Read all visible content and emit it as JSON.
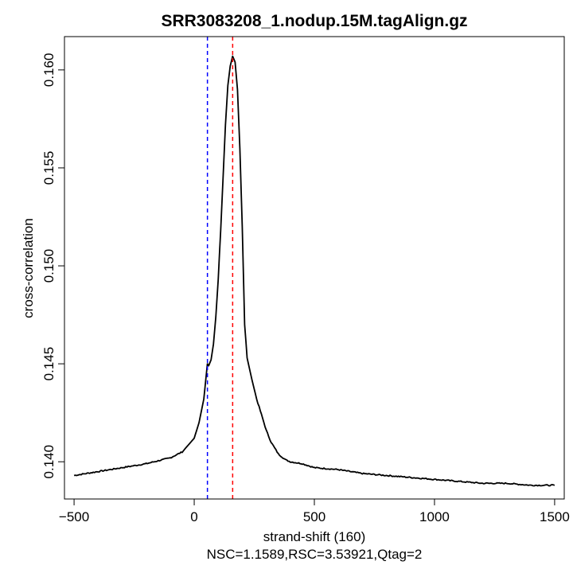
{
  "chart_data": {
    "type": "line",
    "title": "SRR3083208_1.nodup.15M.tagAlign.gz",
    "xlabel": "strand-shift (160)",
    "ylabel": "cross-correlation",
    "subtitle": "NSC=1.1589,RSC=3.53921,Qtag=2",
    "xlim": [
      -540,
      1540
    ],
    "ylim": [
      0.1381,
      0.1617
    ],
    "x_ticks": [
      -500,
      0,
      500,
      1000,
      1500
    ],
    "x_tick_labels": [
      "−500",
      "0",
      "500",
      "1000",
      "1500"
    ],
    "y_ticks": [
      0.14,
      0.145,
      0.15,
      0.155,
      0.16
    ],
    "y_tick_labels": [
      "0.140",
      "0.145",
      "0.150",
      "0.155",
      "0.160"
    ],
    "grid": false,
    "reference_lines": [
      {
        "x": 55,
        "color": "#0000ff",
        "style": "dashed"
      },
      {
        "x": 160,
        "color": "#ff0000",
        "style": "dashed"
      }
    ],
    "series": [
      {
        "color": "#000000",
        "x": [
          -500,
          -400,
          -300,
          -200,
          -100,
          -50,
          0,
          20,
          40,
          50,
          55,
          60,
          70,
          80,
          90,
          100,
          110,
          120,
          130,
          140,
          150,
          160,
          170,
          180,
          190,
          200,
          210,
          220,
          240,
          260,
          280,
          300,
          320,
          350,
          380,
          400,
          450,
          500,
          600,
          700,
          800,
          900,
          1000,
          1100,
          1200,
          1300,
          1400,
          1500
        ],
        "y": [
          0.1393,
          0.1395,
          0.1397,
          0.1399,
          0.1402,
          0.1405,
          0.1412,
          0.142,
          0.1432,
          0.1444,
          0.145,
          0.1449,
          0.1452,
          0.146,
          0.1474,
          0.1493,
          0.1518,
          0.1545,
          0.1572,
          0.1592,
          0.1602,
          0.1607,
          0.1604,
          0.159,
          0.156,
          0.152,
          0.147,
          0.1453,
          0.1442,
          0.1432,
          0.1424,
          0.1416,
          0.141,
          0.1404,
          0.1401,
          0.14,
          0.1399,
          0.1397,
          0.1396,
          0.1394,
          0.1393,
          0.1392,
          0.1391,
          0.139,
          0.1389,
          0.1389,
          0.1388,
          0.1388
        ]
      }
    ]
  }
}
